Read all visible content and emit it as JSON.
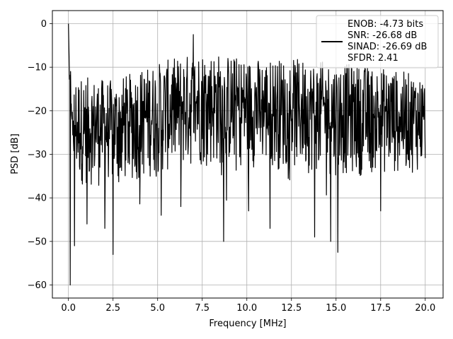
{
  "chart_data": {
    "type": "line",
    "title": "",
    "xlabel": "Frequency [MHz]",
    "ylabel": "PSD [dB]",
    "xlim": [
      -0.9,
      21.0
    ],
    "ylim": [
      -63,
      3
    ],
    "xticks": [
      0.0,
      2.5,
      5.0,
      7.5,
      10.0,
      12.5,
      15.0,
      17.5,
      20.0
    ],
    "xtick_labels": [
      "0.0",
      "2.5",
      "5.0",
      "7.5",
      "10.0",
      "12.5",
      "15.0",
      "17.5",
      "20.0"
    ],
    "yticks": [
      0,
      -10,
      -20,
      -30,
      -40,
      -50,
      -60
    ],
    "ytick_labels": [
      "0",
      "−10",
      "−20",
      "−30",
      "−40",
      "−50",
      "−60"
    ],
    "grid": true,
    "legend_position": "top-right",
    "series": [
      {
        "color": "#000000",
        "x_range": [
          0,
          20
        ],
        "point_count": 1000,
        "band_floor_approx": [
          [
            0.3,
            -37
          ],
          [
            2.5,
            -38
          ],
          [
            5,
            -35
          ],
          [
            7.5,
            -33
          ],
          [
            10,
            -33
          ],
          [
            12.5,
            -34
          ],
          [
            15,
            -35
          ],
          [
            17.5,
            -35
          ],
          [
            20,
            -34
          ]
        ],
        "band_ceiling_approx": [
          [
            0.3,
            -12
          ],
          [
            2.5,
            -13
          ],
          [
            5,
            -9
          ],
          [
            7.5,
            -6
          ],
          [
            10,
            -8
          ],
          [
            12.5,
            -8
          ],
          [
            15,
            -9
          ],
          [
            17.5,
            -10
          ],
          [
            20,
            -12
          ]
        ],
        "peaks": [
          {
            "x": 0.0,
            "y": 0
          },
          {
            "x": 7.0,
            "y": -2.5
          }
        ],
        "notches": [
          {
            "x": 0.1,
            "y": -60
          },
          {
            "x": 0.35,
            "y": -51
          },
          {
            "x": 2.5,
            "y": -53
          },
          {
            "x": 1.05,
            "y": -46
          },
          {
            "x": 2.05,
            "y": -47
          },
          {
            "x": 5.2,
            "y": -44
          },
          {
            "x": 8.7,
            "y": -50
          },
          {
            "x": 11.3,
            "y": -47
          },
          {
            "x": 13.8,
            "y": -49
          },
          {
            "x": 15.1,
            "y": -52.5
          },
          {
            "x": 14.7,
            "y": -50
          },
          {
            "x": 17.5,
            "y": -43
          },
          {
            "x": 10.1,
            "y": -43
          },
          {
            "x": 6.3,
            "y": -42
          }
        ]
      }
    ],
    "legend": {
      "lines": [
        "ENOB: -4.73 bits",
        "SNR: -26.68 dB",
        "SINAD: -26.69 dB",
        "SFDR: 2.41"
      ]
    }
  }
}
